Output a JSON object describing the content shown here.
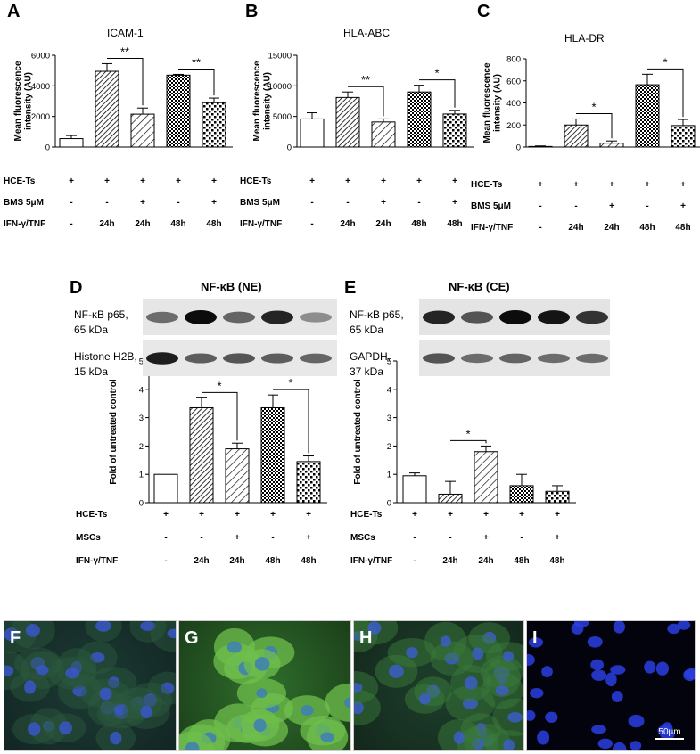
{
  "panels_top": [
    {
      "letter": "A",
      "title": "ICAM-1"
    },
    {
      "letter": "B",
      "title": "HLA-ABC"
    },
    {
      "letter": "C",
      "title": "HLA-DR"
    }
  ],
  "panels_mid": [
    {
      "letter": "D",
      "title": "NF-κB (NE)",
      "blot_top": "NF-κB p65,\n65 kDa",
      "blot_bottom": "Histone H2B,\n15 kDa"
    },
    {
      "letter": "E",
      "title": "NF-κB (CE)",
      "blot_top": "NF-κB p65,\n65 kDa",
      "blot_bottom": "GAPDH,\n37 kDa"
    }
  ],
  "row_labels_top": [
    "HCE-Ts",
    "BMS 5μM",
    "IFN-γ/TNF"
  ],
  "row_labels_mid": [
    "HCE-Ts",
    "MSCs",
    "IFN-γ/TNF"
  ],
  "condition_rows": [
    [
      "+",
      "+",
      "+",
      "+",
      "+"
    ],
    [
      "-",
      "-",
      "+",
      "-",
      "+"
    ],
    [
      "-",
      "24h",
      "24h",
      "48h",
      "48h"
    ]
  ],
  "micro_panels": [
    "F",
    "G",
    "H",
    "I"
  ],
  "scale_bar": "50μm",
  "chart_data": [
    {
      "type": "bar",
      "id": "A",
      "title": "ICAM-1",
      "ylabel": "Mean fluorescence intensity (AU)",
      "ylim": [
        0,
        6000
      ],
      "ticks": [
        0,
        2000,
        4000,
        6000
      ],
      "values": [
        550,
        4950,
        2150,
        4700,
        2900
      ],
      "errors": [
        200,
        500,
        400,
        50,
        300
      ],
      "sig": [
        {
          "from": 1,
          "to": 2,
          "label": "**"
        },
        {
          "from": 3,
          "to": 4,
          "label": "**"
        }
      ]
    },
    {
      "type": "bar",
      "id": "B",
      "title": "HLA-ABC",
      "ylabel": "Mean fluorescence intensity (AU)",
      "ylim": [
        0,
        15000
      ],
      "ticks": [
        0,
        5000,
        10000,
        15000
      ],
      "values": [
        4600,
        8100,
        4100,
        9000,
        5400
      ],
      "errors": [
        1000,
        900,
        500,
        1100,
        600
      ],
      "sig": [
        {
          "from": 1,
          "to": 2,
          "label": "**"
        },
        {
          "from": 3,
          "to": 4,
          "label": "*"
        }
      ]
    },
    {
      "type": "bar",
      "id": "C",
      "title": "HLA-DR",
      "ylabel": "Mean fluorescence intensity (AU)",
      "ylim": [
        0,
        800
      ],
      "ticks": [
        0,
        200,
        400,
        600,
        800
      ],
      "values": [
        5,
        200,
        35,
        565,
        195
      ],
      "errors": [
        5,
        55,
        20,
        95,
        55
      ],
      "sig": [
        {
          "from": 1,
          "to": 2,
          "label": "*"
        },
        {
          "from": 3,
          "to": 4,
          "label": "*"
        }
      ]
    },
    {
      "type": "bar",
      "id": "D",
      "ylabel": "Fold of untreated control",
      "ylim": [
        0,
        5
      ],
      "ticks": [
        0,
        1,
        2,
        3,
        4,
        5
      ],
      "values": [
        1.0,
        3.35,
        1.9,
        3.35,
        1.45
      ],
      "errors": [
        0,
        0.35,
        0.2,
        0.45,
        0.2
      ],
      "sig": [
        {
          "from": 1,
          "to": 2,
          "label": "*"
        },
        {
          "from": 3,
          "to": 4,
          "label": "*"
        }
      ]
    },
    {
      "type": "bar",
      "id": "E",
      "ylabel": "Fold of untreated control",
      "ylim": [
        0,
        5
      ],
      "ticks": [
        0,
        1,
        2,
        3,
        4,
        5
      ],
      "values": [
        0.95,
        0.3,
        1.8,
        0.6,
        0.4
      ],
      "errors": [
        0.1,
        0.45,
        0.2,
        0.4,
        0.2
      ],
      "sig": [
        {
          "from": 1,
          "to": 2,
          "label": "*"
        }
      ]
    }
  ]
}
